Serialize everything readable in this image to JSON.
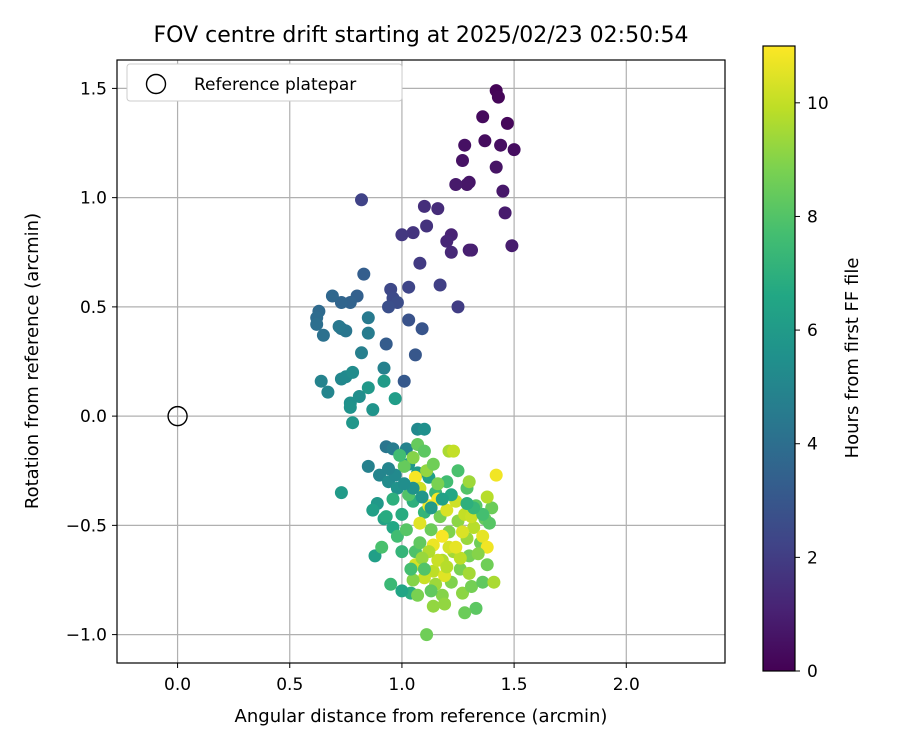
{
  "chart_data": {
    "type": "scatter",
    "title": "FOV centre drift starting at 2025/02/23 02:50:54",
    "xlabel": "Angular distance from reference (arcmin)",
    "ylabel": "Rotation from reference (arcmin)",
    "xlim": [
      -0.27,
      2.44
    ],
    "ylim": [
      -1.13,
      1.63
    ],
    "xticks": [
      0.0,
      0.5,
      1.0,
      1.5,
      2.0
    ],
    "xtick_labels": [
      "0.0",
      "0.5",
      "1.0",
      "1.5",
      "2.0"
    ],
    "yticks": [
      -1.0,
      -0.5,
      0.0,
      0.5,
      1.0,
      1.5
    ],
    "ytick_labels": [
      "−1.0",
      "−0.5",
      "0.0",
      "0.5",
      "1.0",
      "1.5"
    ],
    "grid": true,
    "legend": {
      "placement": "top-left",
      "entries": [
        "Reference platepar"
      ]
    },
    "reference_point": {
      "x": 0.0,
      "y": 0.0,
      "label": "Reference platepar"
    },
    "colorbar": {
      "label": "Hours from first FF file",
      "range": [
        0,
        11
      ],
      "ticks": [
        0,
        2,
        4,
        6,
        8,
        10
      ],
      "tick_labels": [
        "0",
        "2",
        "4",
        "6",
        "8",
        "10"
      ],
      "colormap": "viridis"
    },
    "points": [
      [
        1.42,
        1.49,
        0.1
      ],
      [
        1.43,
        1.46,
        0.15
      ],
      [
        1.47,
        1.34,
        0.2
      ],
      [
        1.36,
        1.37,
        0.3
      ],
      [
        1.37,
        1.26,
        0.35
      ],
      [
        1.5,
        1.22,
        0.4
      ],
      [
        1.44,
        1.24,
        0.45
      ],
      [
        1.28,
        1.24,
        0.5
      ],
      [
        1.27,
        1.17,
        0.55
      ],
      [
        1.42,
        1.14,
        0.6
      ],
      [
        1.3,
        1.07,
        0.65
      ],
      [
        1.29,
        1.06,
        0.7
      ],
      [
        1.45,
        1.03,
        0.75
      ],
      [
        1.24,
        1.06,
        0.8
      ],
      [
        1.46,
        0.93,
        0.85
      ],
      [
        1.49,
        0.78,
        0.9
      ],
      [
        1.3,
        0.76,
        0.95
      ],
      [
        1.31,
        0.76,
        1.0
      ],
      [
        1.22,
        0.83,
        1.1
      ],
      [
        1.2,
        0.8,
        1.2
      ],
      [
        1.22,
        0.75,
        1.3
      ],
      [
        1.16,
        0.95,
        1.4
      ],
      [
        1.1,
        0.96,
        1.5
      ],
      [
        1.11,
        0.87,
        1.6
      ],
      [
        1.05,
        0.84,
        1.7
      ],
      [
        1.0,
        0.83,
        1.8
      ],
      [
        1.08,
        0.7,
        1.9
      ],
      [
        1.25,
        0.5,
        2.0
      ],
      [
        1.17,
        0.6,
        2.1
      ],
      [
        0.82,
        0.99,
        2.2
      ],
      [
        1.03,
        0.59,
        2.3
      ],
      [
        0.95,
        0.58,
        2.4
      ],
      [
        0.96,
        0.54,
        2.5
      ],
      [
        0.98,
        0.52,
        2.6
      ],
      [
        0.94,
        0.5,
        2.7
      ],
      [
        1.03,
        0.44,
        2.8
      ],
      [
        1.09,
        0.4,
        2.9
      ],
      [
        1.06,
        0.28,
        3.0
      ],
      [
        1.01,
        0.16,
        3.1
      ],
      [
        0.93,
        0.33,
        3.2
      ],
      [
        0.83,
        0.65,
        3.3
      ],
      [
        0.8,
        0.55,
        3.4
      ],
      [
        0.77,
        0.52,
        3.5
      ],
      [
        0.73,
        0.52,
        3.6
      ],
      [
        0.69,
        0.55,
        3.7
      ],
      [
        0.63,
        0.48,
        3.8
      ],
      [
        0.62,
        0.45,
        3.9
      ],
      [
        0.62,
        0.42,
        4.0
      ],
      [
        0.65,
        0.37,
        4.1
      ],
      [
        0.73,
        0.4,
        4.2
      ],
      [
        0.75,
        0.39,
        4.3
      ],
      [
        0.72,
        0.41,
        4.4
      ],
      [
        0.85,
        0.45,
        4.5
      ],
      [
        0.85,
        0.38,
        4.6
      ],
      [
        0.82,
        0.29,
        4.7
      ],
      [
        0.92,
        0.22,
        4.8
      ],
      [
        0.64,
        0.16,
        4.9
      ],
      [
        0.67,
        0.11,
        5.0
      ],
      [
        0.73,
        0.17,
        5.1
      ],
      [
        0.75,
        0.18,
        5.2
      ],
      [
        0.78,
        0.2,
        5.3
      ],
      [
        0.81,
        0.09,
        5.4
      ],
      [
        0.77,
        0.06,
        5.5
      ],
      [
        0.77,
        0.04,
        5.6
      ],
      [
        0.87,
        0.03,
        5.7
      ],
      [
        0.78,
        -0.03,
        5.8
      ],
      [
        0.85,
        0.13,
        5.9
      ],
      [
        0.92,
        0.16,
        6.0
      ],
      [
        0.97,
        0.08,
        6.1
      ],
      [
        0.93,
        -0.14,
        4.3
      ],
      [
        0.96,
        -0.15,
        4.6
      ],
      [
        1.02,
        -0.15,
        4.9
      ],
      [
        1.07,
        -0.06,
        5.2
      ],
      [
        1.1,
        -0.06,
        5.5
      ],
      [
        0.85,
        -0.23,
        4.8
      ],
      [
        0.9,
        -0.27,
        5.0
      ],
      [
        0.94,
        -0.3,
        5.3
      ],
      [
        0.98,
        -0.33,
        5.6
      ],
      [
        1.03,
        -0.22,
        5.8
      ],
      [
        1.07,
        -0.26,
        6.0
      ],
      [
        1.12,
        -0.28,
        6.2
      ],
      [
        0.89,
        -0.4,
        5.9
      ],
      [
        0.87,
        -0.43,
        6.2
      ],
      [
        0.92,
        -0.47,
        6.4
      ],
      [
        0.96,
        -0.51,
        6.6
      ],
      [
        1.0,
        -0.45,
        6.8
      ],
      [
        1.05,
        -0.39,
        7.0
      ],
      [
        1.1,
        -0.44,
        7.2
      ],
      [
        1.15,
        -0.35,
        7.4
      ],
      [
        1.2,
        -0.3,
        7.6
      ],
      [
        1.25,
        -0.25,
        7.8
      ],
      [
        1.29,
        -0.33,
        8.0
      ],
      [
        1.33,
        -0.41,
        8.2
      ],
      [
        1.37,
        -0.47,
        8.4
      ],
      [
        1.4,
        -0.42,
        8.5
      ],
      [
        1.35,
        -0.58,
        8.6
      ],
      [
        1.3,
        -0.64,
        8.7
      ],
      [
        1.26,
        -0.7,
        8.8
      ],
      [
        1.22,
        -0.76,
        8.9
      ],
      [
        1.18,
        -0.82,
        9.0
      ],
      [
        1.14,
        -0.87,
        9.2
      ],
      [
        1.11,
        -1.0,
        8.6
      ],
      [
        1.04,
        -0.81,
        6.9
      ],
      [
        1.0,
        -0.8,
        6.5
      ],
      [
        0.95,
        -0.77,
        7.4
      ],
      [
        0.88,
        -0.64,
        6.2
      ],
      [
        0.73,
        -0.35,
        6.0
      ],
      [
        0.91,
        -0.6,
        7.8
      ],
      [
        0.98,
        -0.55,
        7.6
      ],
      [
        1.06,
        -0.62,
        7.9
      ],
      [
        1.02,
        -0.52,
        8.1
      ],
      [
        1.08,
        -0.58,
        8.3
      ],
      [
        1.13,
        -0.52,
        8.5
      ],
      [
        1.17,
        -0.46,
        8.7
      ],
      [
        1.21,
        -0.53,
        8.9
      ],
      [
        1.25,
        -0.48,
        9.1
      ],
      [
        1.29,
        -0.56,
        9.3
      ],
      [
        1.23,
        -0.62,
        9.5
      ],
      [
        1.18,
        -0.66,
        9.7
      ],
      [
        1.14,
        -0.71,
        9.9
      ],
      [
        1.1,
        -0.74,
        10.1
      ],
      [
        1.06,
        -0.68,
        10.3
      ],
      [
        1.08,
        -0.49,
        10.5
      ],
      [
        1.12,
        -0.41,
        10.7
      ],
      [
        1.16,
        -0.38,
        10.9
      ],
      [
        1.2,
        -0.43,
        10.4
      ],
      [
        1.24,
        -0.39,
        10.2
      ],
      [
        1.28,
        -0.45,
        10.0
      ],
      [
        1.32,
        -0.51,
        9.8
      ],
      [
        1.36,
        -0.55,
        10.6
      ],
      [
        1.38,
        -0.6,
        10.8
      ],
      [
        1.42,
        -0.27,
        10.8
      ],
      [
        1.38,
        -0.37,
        9.8
      ],
      [
        1.3,
        -0.3,
        9.4
      ],
      [
        1.21,
        -0.16,
        9.6
      ],
      [
        1.23,
        -0.16,
        10.0
      ],
      [
        1.06,
        -0.28,
        10.9
      ],
      [
        1.08,
        -0.33,
        10.2
      ],
      [
        1.11,
        -0.25,
        9.2
      ],
      [
        1.16,
        -0.31,
        8.8
      ],
      [
        1.05,
        -0.19,
        9.0
      ],
      [
        1.01,
        -0.23,
        8.4
      ],
      [
        1.03,
        -0.36,
        8.0
      ],
      [
        1.14,
        -0.59,
        10.7
      ],
      [
        1.18,
        -0.55,
        10.9
      ],
      [
        1.21,
        -0.6,
        10.3
      ],
      [
        1.26,
        -0.65,
        9.9
      ],
      [
        1.3,
        -0.72,
        9.5
      ],
      [
        1.27,
        -0.81,
        9.1
      ],
      [
        1.31,
        -0.78,
        8.7
      ],
      [
        1.36,
        -0.76,
        8.3
      ],
      [
        1.41,
        -0.76,
        9.6
      ],
      [
        1.33,
        -0.88,
        8.2
      ],
      [
        1.28,
        -0.9,
        8.5
      ],
      [
        1.19,
        -0.73,
        10.5
      ],
      [
        1.16,
        -0.66,
        10.1
      ],
      [
        1.12,
        -0.62,
        9.7
      ],
      [
        1.09,
        -0.65,
        9.3
      ],
      [
        1.05,
        -0.75,
        9.0
      ],
      [
        1.07,
        -0.82,
        8.8
      ],
      [
        1.15,
        -0.77,
        9.4
      ],
      [
        1.2,
        -0.69,
        9.8
      ],
      [
        1.24,
        -0.6,
        10.6
      ],
      [
        1.27,
        -0.53,
        10.4
      ],
      [
        1.31,
        -0.46,
        10.1
      ],
      [
        1.34,
        -0.63,
        9.0
      ],
      [
        1.38,
        -0.68,
        8.6
      ],
      [
        1.39,
        -0.49,
        8.1
      ],
      [
        1.36,
        -0.45,
        7.7
      ],
      [
        1.32,
        -0.42,
        7.3
      ],
      [
        1.29,
        -0.4,
        7.0
      ],
      [
        1.22,
        -0.36,
        6.6
      ],
      [
        1.18,
        -0.38,
        6.3
      ],
      [
        1.13,
        -0.42,
        6.0
      ],
      [
        1.09,
        -0.37,
        5.8
      ],
      [
        1.05,
        -0.33,
        5.6
      ],
      [
        1.01,
        -0.31,
        5.4
      ],
      [
        0.97,
        -0.27,
        5.2
      ],
      [
        0.94,
        -0.24,
        5.0
      ],
      [
        0.99,
        -0.18,
        7.6
      ],
      [
        1.07,
        -0.13,
        8.4
      ],
      [
        1.1,
        -0.16,
        8.2
      ],
      [
        1.14,
        -0.22,
        8.6
      ],
      [
        0.96,
        -0.38,
        7.0
      ],
      [
        0.93,
        -0.46,
        6.8
      ],
      [
        1.0,
        -0.62,
        7.2
      ],
      [
        1.04,
        -0.7,
        7.7
      ],
      [
        1.1,
        -0.7,
        8.0
      ],
      [
        1.13,
        -0.8,
        8.3
      ],
      [
        1.19,
        -0.86,
        9.2
      ]
    ]
  }
}
